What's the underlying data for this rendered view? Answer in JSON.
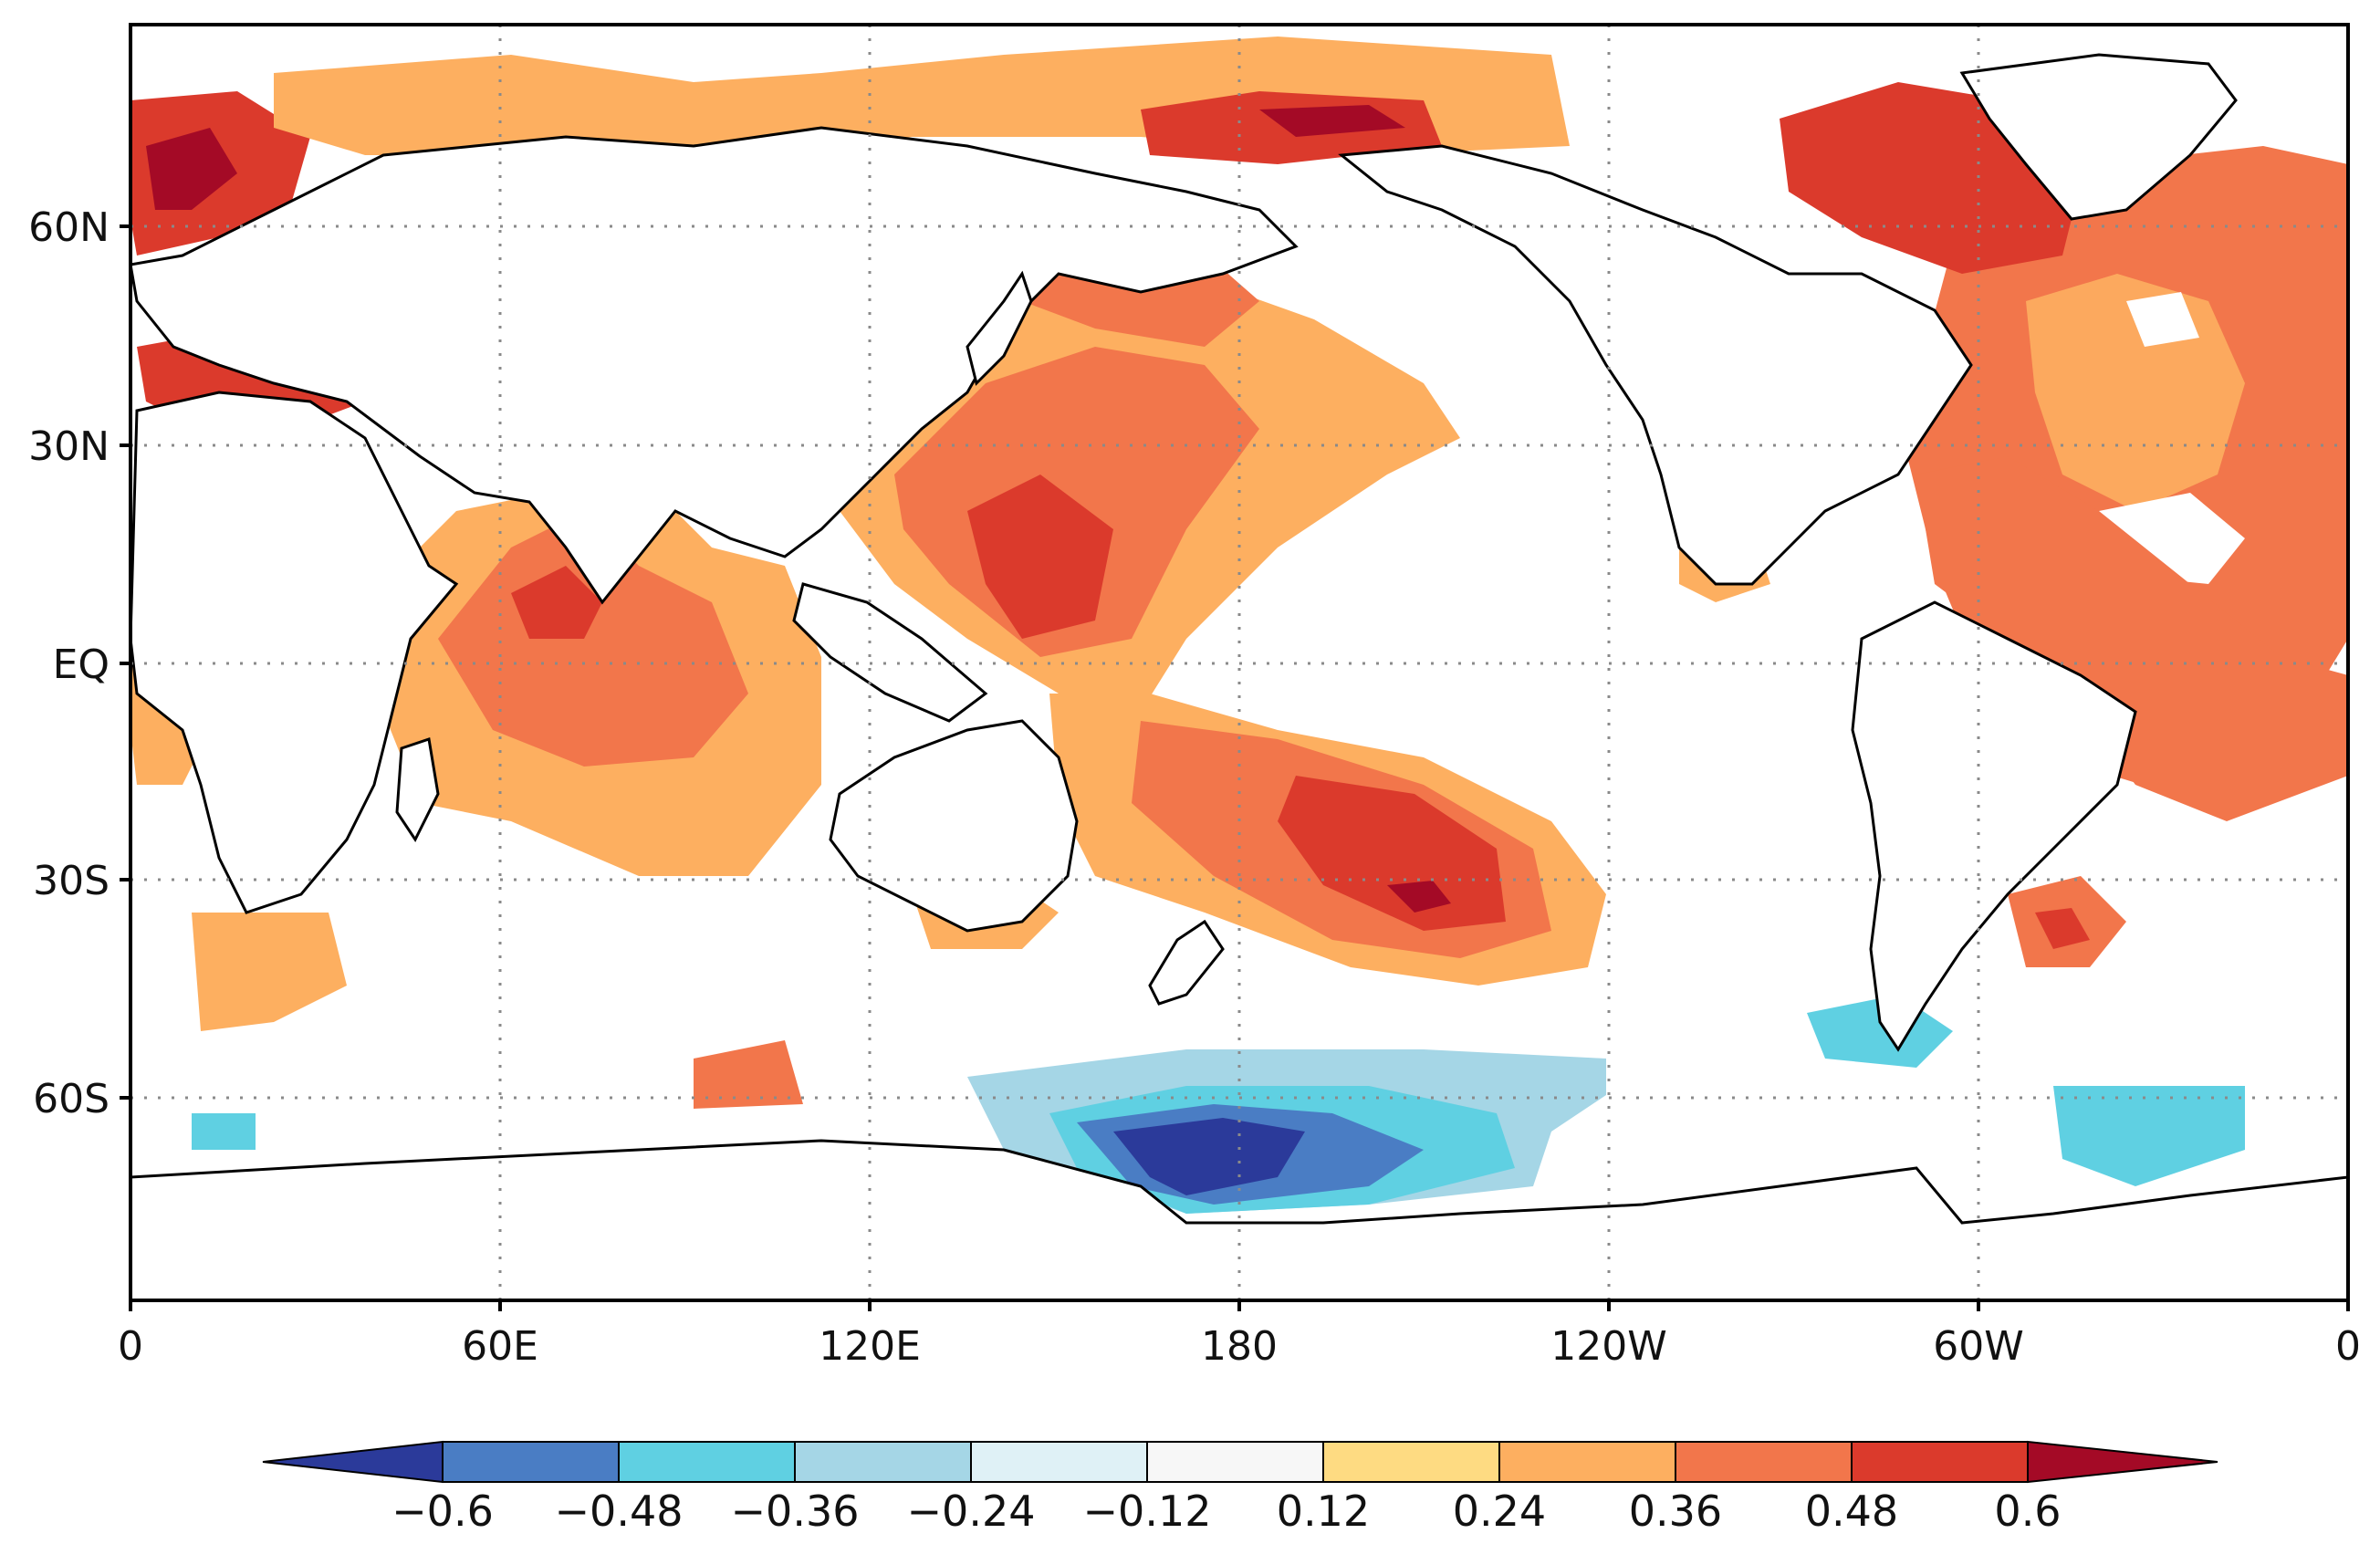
{
  "map": {
    "type": "global-anomaly-map",
    "y_axis_labels": [
      "60N",
      "30N",
      "EQ",
      "30S",
      "60S"
    ],
    "x_axis_labels": [
      "0",
      "60E",
      "120E",
      "180",
      "120W",
      "60W",
      "0"
    ],
    "grid": "dotted",
    "colorbar": {
      "levels": [
        "−0.6",
        "−0.48",
        "−0.36",
        "−0.24",
        "−0.12",
        "0.12",
        "0.24",
        "0.36",
        "0.48",
        "0.6"
      ],
      "colors": [
        "#2b3a9a",
        "#4a7dc4",
        "#5fd0e2",
        "#a5d6e6",
        "#dff1f6",
        "#f7f7f7",
        "#fedb82",
        "#fdaf60",
        "#f2764b",
        "#db3a2c",
        "#a40a26"
      ]
    }
  }
}
